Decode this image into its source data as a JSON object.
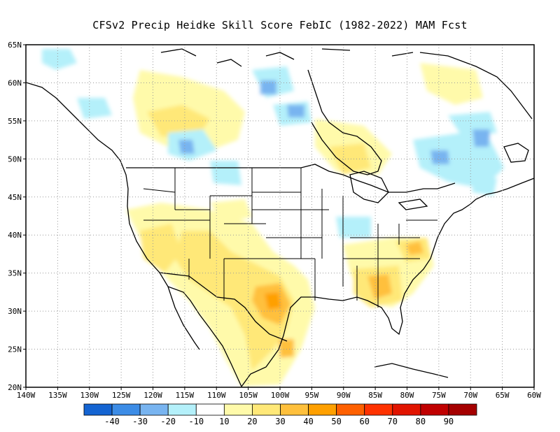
{
  "title": "CFSv2 Precip Heidke Skill Score FebIC (1982-2022) MAM Fcst",
  "lat_labels": [
    "65N",
    "60N",
    "55N",
    "50N",
    "45N",
    "40N",
    "35N",
    "30N",
    "25N",
    "20N"
  ],
  "lon_labels": [
    "140W",
    "135W",
    "130W",
    "125W",
    "120W",
    "115W",
    "110W",
    "105W",
    "100W",
    "95W",
    "90W",
    "85W",
    "80W",
    "75W",
    "70W",
    "65W",
    "60W"
  ],
  "legend": {
    "colors": [
      "#1464d2",
      "#3c8ce6",
      "#78b4f0",
      "#b4f0fa",
      "#ffffff",
      "#fffaaa",
      "#ffe878",
      "#ffc03c",
      "#ffa000",
      "#ff6000",
      "#ff3200",
      "#e11400",
      "#c00000",
      "#a50000"
    ],
    "labels": [
      "-40",
      "-30",
      "-20",
      "-10",
      "10",
      "20",
      "30",
      "40",
      "50",
      "60",
      "70",
      "80",
      "90"
    ]
  },
  "colors": {
    "coast": "#000000",
    "grid": "#9a9a9a"
  }
}
